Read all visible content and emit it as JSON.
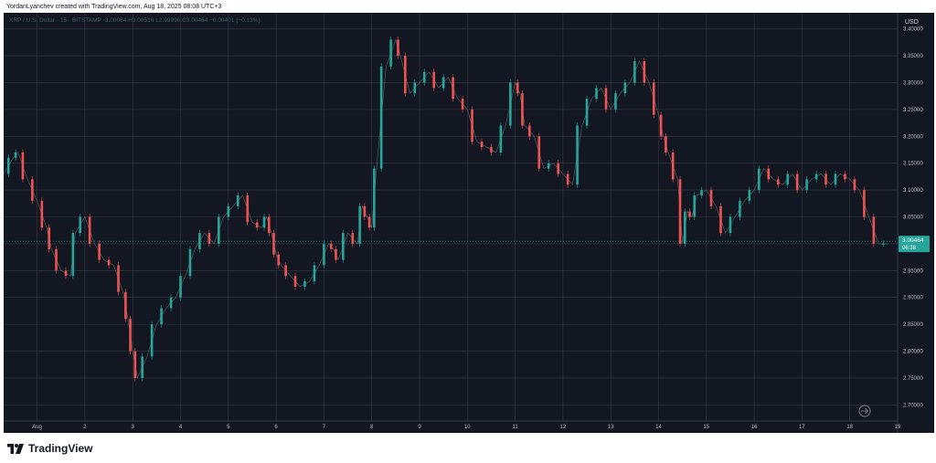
{
  "header": {
    "attribution": "YordanLyanchev created with TradingView.com, Aug 18, 2025 08:08 UTC+3"
  },
  "brand": {
    "name": "TradingView"
  },
  "chart_data": {
    "type": "line",
    "title": "",
    "legend_text": "XRP / U.S. Dollar · 15 · BITSTAMP  ◦3.00064  H3.00516  L2.99996  C3.00464  −0.00401 (−0.13%)",
    "currency": "USD",
    "ylim": [
      2.67,
      3.43
    ],
    "y_ticks": [
      "3.40000",
      "3.35000",
      "3.30000",
      "3.25000",
      "3.20000",
      "3.15000",
      "3.10000",
      "3.05000",
      "3.00000",
      "2.95000",
      "2.90000",
      "2.85000",
      "2.80000",
      "2.75000",
      "2.70000"
    ],
    "y_tick_values": [
      3.4,
      3.35,
      3.3,
      3.25,
      3.2,
      3.15,
      3.1,
      3.05,
      3.0,
      2.95,
      2.9,
      2.85,
      2.8,
      2.75,
      2.7
    ],
    "x_ticks": [
      "Aug",
      "2",
      "3",
      "4",
      "5",
      "6",
      "7",
      "8",
      "9",
      "10",
      "11",
      "12",
      "13",
      "14",
      "15",
      "16",
      "17",
      "18",
      "19"
    ],
    "x_tick_days": [
      0.7,
      1.7,
      2.7,
      3.7,
      4.7,
      5.7,
      6.7,
      7.7,
      8.7,
      9.7,
      10.7,
      11.7,
      12.7,
      13.7,
      14.7,
      15.7,
      16.7,
      17.7,
      18.7
    ],
    "x_range_days": [
      0.0,
      18.7
    ],
    "last_price": {
      "value": "3.00464",
      "countdown": "06:38"
    },
    "colors": {
      "up": "#26a69a",
      "down": "#ef5350",
      "background": "#131722",
      "grid": "#363a45",
      "price_tag": "#26a69a"
    },
    "series": [
      {
        "x": [
          0.0,
          0.2,
          0.3,
          0.5,
          0.7,
          0.9,
          1.0,
          1.2,
          1.4,
          1.5,
          1.7,
          1.9,
          2.1,
          2.3,
          2.5,
          2.6,
          2.7,
          2.8,
          3.0,
          3.2,
          3.4,
          3.6,
          3.8,
          4.0,
          4.2,
          4.4,
          4.6,
          4.8,
          5.0,
          5.2,
          5.4,
          5.5,
          5.6,
          5.7,
          5.8,
          6.0,
          6.2,
          6.4,
          6.6,
          6.8,
          6.9,
          7.0,
          7.2,
          7.4,
          7.5,
          7.6,
          7.7,
          7.8,
          8.0,
          8.2,
          8.3,
          8.5,
          8.7,
          8.9,
          9.1,
          9.3,
          9.5,
          9.7,
          9.9,
          10.1,
          10.3,
          10.5,
          10.7,
          10.8,
          10.9,
          11.1,
          11.3,
          11.5,
          11.7,
          11.9,
          12.1,
          12.3,
          12.5,
          12.7,
          12.9,
          13.1,
          13.3,
          13.5,
          13.7,
          13.8,
          13.9,
          14.1,
          14.2,
          14.3,
          14.4,
          14.5,
          14.7,
          14.9,
          15.1,
          15.3,
          15.5,
          15.7,
          15.9,
          16.1,
          16.3,
          16.5,
          16.7,
          16.9,
          17.1,
          17.3,
          17.5,
          17.7,
          17.9,
          18.1,
          18.3,
          18.5
        ],
        "y": [
          3.13,
          3.16,
          3.17,
          3.12,
          3.08,
          3.03,
          2.99,
          2.95,
          2.94,
          3.02,
          3.05,
          3.0,
          2.97,
          2.96,
          2.91,
          2.86,
          2.8,
          2.75,
          2.79,
          2.85,
          2.88,
          2.9,
          2.94,
          2.99,
          3.02,
          3.0,
          3.05,
          3.07,
          3.09,
          3.04,
          3.03,
          3.05,
          3.02,
          2.98,
          2.96,
          2.94,
          2.92,
          2.93,
          2.96,
          3.0,
          2.99,
          2.97,
          3.02,
          3.0,
          3.07,
          3.05,
          3.03,
          3.14,
          3.33,
          3.38,
          3.35,
          3.28,
          3.3,
          3.32,
          3.29,
          3.31,
          3.27,
          3.25,
          3.19,
          3.18,
          3.17,
          3.22,
          3.3,
          3.28,
          3.22,
          3.2,
          3.14,
          3.15,
          3.13,
          3.11,
          3.22,
          3.27,
          3.29,
          3.25,
          3.28,
          3.3,
          3.34,
          3.3,
          3.24,
          3.2,
          3.17,
          3.12,
          3.0,
          3.06,
          3.05,
          3.09,
          3.1,
          3.07,
          3.02,
          3.05,
          3.08,
          3.1,
          3.14,
          3.12,
          3.11,
          3.13,
          3.1,
          3.12,
          3.13,
          3.11,
          3.13,
          3.12,
          3.1,
          3.05,
          3.0,
          3.0
        ]
      }
    ]
  }
}
